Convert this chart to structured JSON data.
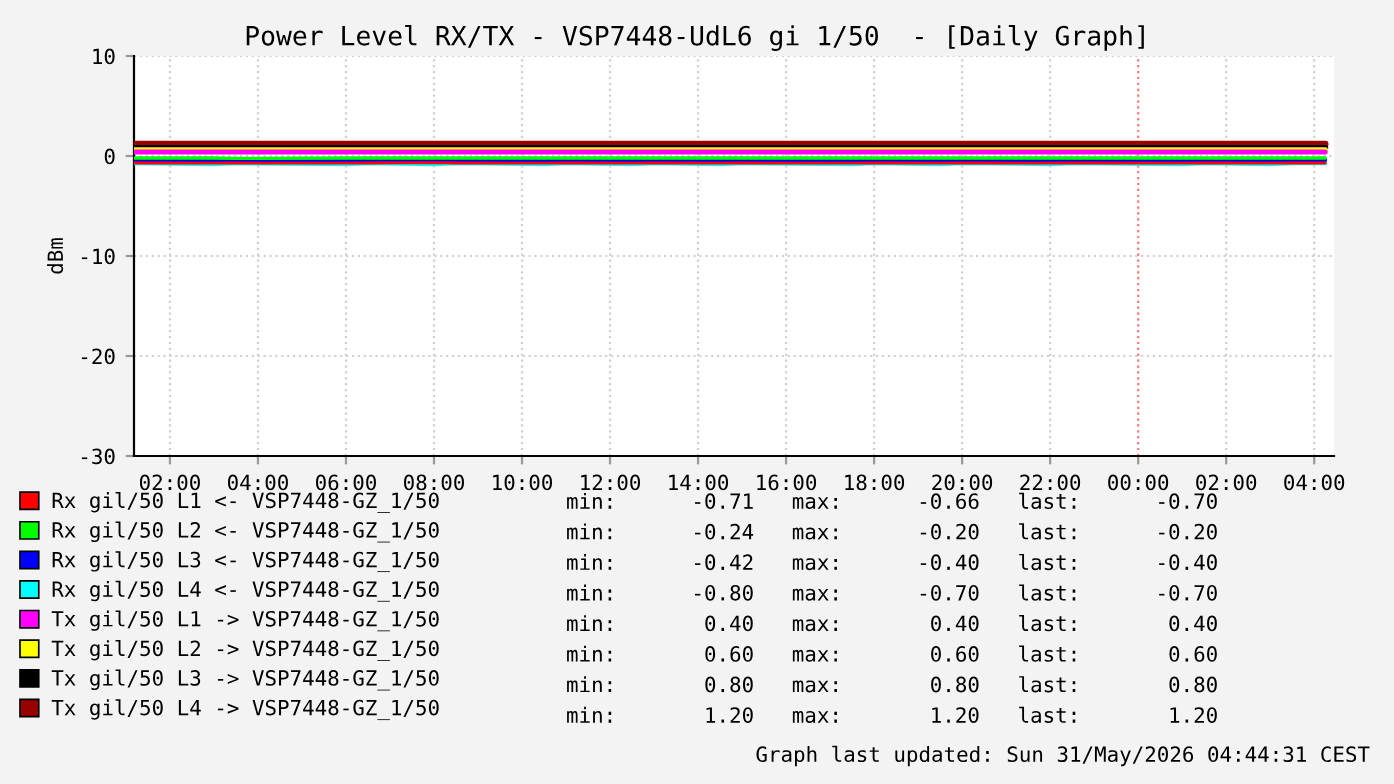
{
  "chart_data": {
    "type": "line",
    "title": "Power Level RX/TX - VSP7448-UdL6 gi 1/50  - [Daily Graph]",
    "ylabel": "dBm",
    "x": [
      "2026-05-30T01:12",
      "2026-05-30T03:00",
      "2026-05-30T03:30",
      "2026-05-30T06:00",
      "2026-05-30T06:30",
      "2026-05-30T08:00",
      "2026-05-30T08:30",
      "2026-05-30T10:30",
      "2026-05-30T11:00",
      "2026-05-30T12:30",
      "2026-05-30T13:00",
      "2026-05-30T14:30",
      "2026-05-30T15:00",
      "2026-05-30T17:30",
      "2026-05-30T18:00",
      "2026-05-30T19:30",
      "2026-05-30T20:00",
      "2026-05-30T22:00",
      "2026-05-30T22:30",
      "2026-05-31T01:00",
      "2026-05-31T01:30",
      "2026-05-31T03:00",
      "2026-05-31T03:30",
      "2026-05-31T04:15"
    ],
    "series": [
      {
        "name": "Rx gil/50 L1 <- VSP7448-GZ_1/50",
        "color": "#ff0000",
        "values": [
          -0.7,
          -0.71,
          -0.7,
          -0.71,
          -0.7,
          -0.66,
          -0.7,
          -0.71,
          -0.7,
          -0.71,
          -0.7,
          -0.71,
          -0.7,
          -0.71,
          -0.7,
          -0.71,
          -0.7,
          -0.71,
          -0.7,
          -0.71,
          -0.7,
          -0.71,
          -0.7,
          -0.7
        ]
      },
      {
        "name": "Rx gil/50 L2 <- VSP7448-GZ_1/50",
        "color": "#00ff00",
        "values": [
          -0.2,
          -0.2,
          -0.24,
          -0.2,
          -0.2,
          -0.2,
          -0.2,
          -0.2,
          -0.2,
          -0.2,
          -0.2,
          -0.2,
          -0.2,
          -0.2,
          -0.2,
          -0.2,
          -0.2,
          -0.2,
          -0.2,
          -0.2,
          -0.2,
          -0.2,
          -0.2,
          -0.2
        ]
      },
      {
        "name": "Rx gil/50 L3 <- VSP7448-GZ_1/50",
        "color": "#0000ff",
        "values": [
          -0.4,
          -0.4,
          -0.42,
          -0.4,
          -0.4,
          -0.4,
          -0.4,
          -0.4,
          -0.4,
          -0.4,
          -0.42,
          -0.4,
          -0.4,
          -0.4,
          -0.4,
          -0.4,
          -0.4,
          -0.4,
          -0.4,
          -0.4,
          -0.4,
          -0.4,
          -0.4,
          -0.4
        ]
      },
      {
        "name": "Rx gil/50 L4 <- VSP7448-GZ_1/50",
        "color": "#00ffff",
        "values": [
          -0.7,
          -0.8,
          -0.7,
          -0.8,
          -0.7,
          -0.8,
          -0.7,
          -0.8,
          -0.7,
          -0.8,
          -0.7,
          -0.8,
          -0.7,
          -0.8,
          -0.7,
          -0.8,
          -0.7,
          -0.8,
          -0.7,
          -0.8,
          -0.7,
          -0.8,
          -0.7,
          -0.7
        ]
      },
      {
        "name": "Tx gil/50 L1 -> VSP7448-GZ_1/50",
        "color": "#ff00ff",
        "values": [
          0.4,
          0.4,
          0.4,
          0.4,
          0.4,
          0.4,
          0.4,
          0.4,
          0.4,
          0.4,
          0.4,
          0.4,
          0.4,
          0.4,
          0.4,
          0.4,
          0.4,
          0.4,
          0.4,
          0.4,
          0.4,
          0.4,
          0.4,
          0.4
        ]
      },
      {
        "name": "Tx gil/50 L2 -> VSP7448-GZ_1/50",
        "color": "#ffff00",
        "values": [
          0.6,
          0.6,
          0.6,
          0.6,
          0.6,
          0.6,
          0.6,
          0.6,
          0.6,
          0.6,
          0.6,
          0.6,
          0.6,
          0.6,
          0.6,
          0.6,
          0.6,
          0.6,
          0.6,
          0.6,
          0.6,
          0.6,
          0.6,
          0.6
        ]
      },
      {
        "name": "Tx gil/50 L3 -> VSP7448-GZ_1/50",
        "color": "#000000",
        "values": [
          0.8,
          0.8,
          0.8,
          0.8,
          0.8,
          0.8,
          0.8,
          0.8,
          0.8,
          0.8,
          0.8,
          0.8,
          0.8,
          0.8,
          0.8,
          0.8,
          0.8,
          0.8,
          0.8,
          0.8,
          0.8,
          0.8,
          0.8,
          0.8
        ]
      },
      {
        "name": "Tx gil/50 L4 -> VSP7448-GZ_1/50",
        "color": "#990000",
        "values": [
          1.2,
          1.2,
          1.2,
          1.2,
          1.2,
          1.2,
          1.2,
          1.2,
          1.2,
          1.2,
          1.2,
          1.2,
          1.2,
          1.2,
          1.2,
          1.2,
          1.2,
          1.2,
          1.2,
          1.2,
          1.2,
          1.2,
          1.2,
          1.2
        ]
      }
    ],
    "xlim": [
      "2026-05-30T01:11",
      "2026-05-31T04:27"
    ],
    "ylim": [
      -30,
      10
    ],
    "xticks": [
      {
        "value": "2026-05-30T02:00",
        "label": "02:00"
      },
      {
        "value": "2026-05-30T04:00",
        "label": "04:00"
      },
      {
        "value": "2026-05-30T06:00",
        "label": "06:00"
      },
      {
        "value": "2026-05-30T08:00",
        "label": "08:00"
      },
      {
        "value": "2026-05-30T10:00",
        "label": "10:00"
      },
      {
        "value": "2026-05-30T12:00",
        "label": "12:00"
      },
      {
        "value": "2026-05-30T14:00",
        "label": "14:00"
      },
      {
        "value": "2026-05-30T16:00",
        "label": "16:00"
      },
      {
        "value": "2026-05-30T18:00",
        "label": "18:00"
      },
      {
        "value": "2026-05-30T20:00",
        "label": "20:00"
      },
      {
        "value": "2026-05-30T22:00",
        "label": "22:00"
      },
      {
        "value": "2026-05-31T00:00",
        "label": "00:00"
      },
      {
        "value": "2026-05-31T02:00",
        "label": "02:00"
      },
      {
        "value": "2026-05-31T04:00",
        "label": "04:00"
      }
    ],
    "yticks": [
      -30,
      -20,
      -10,
      0,
      10
    ],
    "grid": true,
    "legend": "bottom",
    "marker": "none",
    "line_style": "solid",
    "ref_lines": [
      {
        "axis": "x",
        "value": "2026-05-31T00:00",
        "label": null,
        "color": "#ff8080",
        "line_style": "dotted"
      }
    ],
    "annotations": [
      "min:      -0.71   max:      -0.66   last:      -0.70",
      "min:      -0.24   max:      -0.20   last:      -0.20",
      "min:      -0.42   max:      -0.40   last:      -0.40",
      "min:      -0.80   max:      -0.70   last:      -0.70",
      "min:       0.40   max:       0.40   last:       0.40",
      "min:       0.60   max:       0.60   last:       0.60",
      "min:       0.80   max:       0.80   last:       0.80",
      "min:       1.20   max:       1.20   last:       1.20",
      "Graph last updated: Sun 31/May/2026 04:44:31 CEST"
    ]
  }
}
